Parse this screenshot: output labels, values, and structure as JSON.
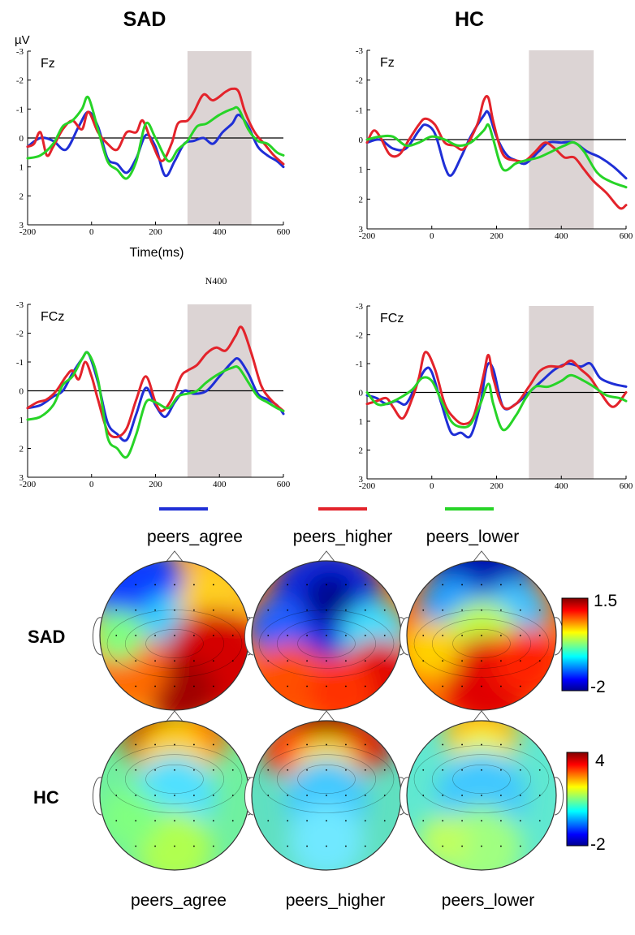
{
  "colors": {
    "peers_agree": "#1f2fd6",
    "peers_higher": "#e3232b",
    "peers_lower": "#27d427",
    "window_shade": "#dcd4d4"
  },
  "groups": {
    "sad": "SAD",
    "hc": "HC"
  },
  "unit_label": "µV",
  "xlabel": "Time(ms)",
  "window_label": "N400",
  "legend": [
    {
      "name": "peers_agree",
      "color": "#1f2fd6"
    },
    {
      "name": "peers_higher",
      "color": "#e3232b"
    },
    {
      "name": "peers_lower",
      "color": "#27d427"
    }
  ],
  "topo": {
    "conditions": [
      "peers_agree",
      "peers_higher",
      "peers_lower"
    ],
    "sad_scale": {
      "max": "1.5",
      "min": "-2"
    },
    "hc_scale": {
      "max": "4",
      "min": "-2"
    }
  },
  "chart_data": [
    {
      "type": "line",
      "panel": "SAD Fz",
      "electrode": "Fz",
      "x_ticks": [
        -200,
        0,
        200,
        400,
        600
      ],
      "y_ticks": [
        -3,
        -2,
        -1,
        0,
        1,
        2,
        3
      ],
      "xlim": [
        -200,
        600
      ],
      "ylim": [
        -3,
        3
      ],
      "y_inverted": true,
      "shaded_window": [
        300,
        500
      ],
      "series": [
        {
          "name": "peers_agree",
          "x": [
            -200,
            -160,
            -120,
            -80,
            -40,
            -10,
            20,
            50,
            80,
            110,
            140,
            170,
            200,
            230,
            260,
            290,
            320,
            350,
            380,
            410,
            440,
            460,
            490,
            520,
            550,
            580,
            600
          ],
          "y": [
            0.3,
            0.0,
            0.1,
            0.4,
            -0.4,
            -0.9,
            -0.4,
            0.7,
            0.9,
            1.2,
            0.7,
            -0.1,
            0.3,
            1.3,
            0.8,
            0.2,
            0.1,
            0.0,
            0.2,
            -0.2,
            -0.5,
            -0.8,
            -0.4,
            0.3,
            0.6,
            0.8,
            1.0
          ]
        },
        {
          "name": "peers_higher",
          "x": [
            -200,
            -180,
            -160,
            -140,
            -120,
            -90,
            -60,
            -30,
            -10,
            20,
            50,
            80,
            110,
            140,
            160,
            190,
            220,
            250,
            270,
            300,
            320,
            350,
            380,
            420,
            440,
            460,
            480,
            510,
            540,
            570,
            600
          ],
          "y": [
            0.3,
            0.2,
            -0.2,
            0.6,
            0.3,
            -0.3,
            -0.6,
            -0.3,
            -0.9,
            -0.2,
            0.2,
            0.4,
            -0.2,
            -0.2,
            -0.6,
            0.2,
            0.8,
            0.2,
            -0.5,
            -0.6,
            -0.9,
            -1.5,
            -1.3,
            -1.6,
            -1.7,
            -1.6,
            -0.9,
            -0.2,
            0.2,
            0.6,
            0.9
          ]
        },
        {
          "name": "peers_lower",
          "x": [
            -200,
            -160,
            -120,
            -90,
            -60,
            -30,
            -10,
            20,
            50,
            80,
            110,
            140,
            170,
            200,
            240,
            270,
            300,
            330,
            360,
            400,
            440,
            460,
            490,
            520,
            550,
            580,
            600
          ],
          "y": [
            0.7,
            0.6,
            0.2,
            -0.4,
            -0.6,
            -1.0,
            -1.4,
            -0.3,
            0.8,
            1.1,
            1.4,
            0.8,
            -0.5,
            0.0,
            0.8,
            0.4,
            0.1,
            -0.4,
            -0.5,
            -0.8,
            -1.0,
            -1.0,
            -0.3,
            0.1,
            0.2,
            0.5,
            0.6
          ]
        }
      ]
    },
    {
      "type": "line",
      "panel": "HC Fz",
      "electrode": "Fz",
      "x_ticks": [
        -200,
        0,
        200,
        400,
        600
      ],
      "y_ticks": [
        -3,
        -2,
        -1,
        0,
        1,
        2,
        3
      ],
      "xlim": [
        -200,
        600
      ],
      "ylim": [
        -3,
        3
      ],
      "y_inverted": true,
      "shaded_window": [
        300,
        500
      ],
      "series": [
        {
          "name": "peers_agree",
          "x": [
            -200,
            -160,
            -120,
            -80,
            -40,
            -20,
            10,
            40,
            60,
            90,
            120,
            160,
            175,
            200,
            230,
            260,
            290,
            330,
            360,
            400,
            440,
            480,
            520,
            560,
            600
          ],
          "y": [
            0.1,
            0.0,
            0.3,
            0.3,
            -0.3,
            -0.5,
            -0.2,
            0.9,
            1.2,
            0.6,
            -0.1,
            -0.8,
            -0.9,
            -0.1,
            0.5,
            0.7,
            0.8,
            0.4,
            0.1,
            0.1,
            0.1,
            0.4,
            0.6,
            0.9,
            1.3
          ]
        },
        {
          "name": "peers_higher",
          "x": [
            -200,
            -180,
            -160,
            -130,
            -100,
            -70,
            -40,
            -20,
            10,
            40,
            70,
            100,
            140,
            160,
            175,
            190,
            220,
            260,
            290,
            320,
            350,
            380,
            410,
            440,
            470,
            500,
            540,
            580,
            600
          ],
          "y": [
            0.1,
            -0.3,
            -0.1,
            0.5,
            0.5,
            0.0,
            -0.5,
            -0.7,
            -0.5,
            0.1,
            0.2,
            0.3,
            -0.5,
            -1.3,
            -1.4,
            -0.6,
            0.5,
            0.7,
            0.7,
            0.4,
            0.1,
            0.3,
            0.6,
            0.6,
            1.0,
            1.4,
            1.8,
            2.3,
            2.2
          ]
        },
        {
          "name": "peers_lower",
          "x": [
            -200,
            -160,
            -120,
            -80,
            -40,
            0,
            40,
            80,
            120,
            160,
            175,
            190,
            220,
            260,
            290,
            330,
            370,
            410,
            440,
            470,
            510,
            550,
            600
          ],
          "y": [
            0.0,
            -0.1,
            -0.1,
            0.2,
            0.1,
            -0.1,
            0.0,
            0.2,
            0.1,
            -0.3,
            -0.5,
            0.0,
            1.0,
            0.8,
            0.7,
            0.6,
            0.4,
            0.2,
            0.1,
            0.4,
            1.1,
            1.4,
            1.6
          ]
        }
      ]
    },
    {
      "type": "line",
      "panel": "SAD FCz",
      "electrode": "FCz",
      "x_ticks": [
        -200,
        0,
        200,
        400,
        600
      ],
      "y_ticks": [
        -3,
        -2,
        -1,
        0,
        1,
        2,
        3
      ],
      "xlim": [
        -200,
        600
      ],
      "ylim": [
        -3,
        3
      ],
      "y_inverted": true,
      "shaded_window": [
        300,
        500
      ],
      "series": [
        {
          "name": "peers_agree",
          "x": [
            -200,
            -160,
            -120,
            -90,
            -60,
            -30,
            -10,
            20,
            50,
            80,
            110,
            140,
            170,
            200,
            230,
            260,
            290,
            320,
            360,
            400,
            440,
            460,
            490,
            520,
            550,
            580,
            600
          ],
          "y": [
            0.6,
            0.5,
            0.2,
            0.0,
            -0.6,
            -1.1,
            -1.3,
            -0.3,
            1.1,
            1.5,
            1.7,
            0.8,
            -0.1,
            0.5,
            0.9,
            0.4,
            0.0,
            0.1,
            0.0,
            -0.5,
            -1.0,
            -1.1,
            -0.6,
            0.1,
            0.3,
            0.5,
            0.8
          ]
        },
        {
          "name": "peers_higher",
          "x": [
            -200,
            -170,
            -140,
            -110,
            -80,
            -60,
            -40,
            -20,
            0,
            20,
            50,
            80,
            110,
            140,
            170,
            200,
            220,
            250,
            280,
            300,
            330,
            360,
            390,
            420,
            450,
            470,
            500,
            530,
            560,
            600
          ],
          "y": [
            0.6,
            0.4,
            0.3,
            0.0,
            -0.5,
            -0.7,
            -0.4,
            -1.0,
            -0.5,
            0.3,
            1.4,
            1.6,
            1.3,
            0.3,
            -0.5,
            0.4,
            0.7,
            0.3,
            -0.5,
            -0.7,
            -0.9,
            -1.3,
            -1.5,
            -1.4,
            -1.9,
            -2.2,
            -1.3,
            -0.2,
            0.3,
            0.7
          ]
        },
        {
          "name": "peers_lower",
          "x": [
            -200,
            -160,
            -120,
            -90,
            -60,
            -30,
            -10,
            20,
            50,
            80,
            110,
            140,
            170,
            200,
            240,
            270,
            300,
            330,
            360,
            400,
            440,
            460,
            490,
            520,
            550,
            580,
            600
          ],
          "y": [
            1.0,
            0.9,
            0.5,
            -0.2,
            -0.5,
            -1.1,
            -1.3,
            -0.4,
            1.6,
            2.0,
            2.3,
            1.5,
            0.4,
            0.4,
            0.6,
            0.2,
            0.1,
            0.0,
            -0.3,
            -0.6,
            -0.8,
            -0.8,
            -0.3,
            0.2,
            0.4,
            0.6,
            0.7
          ]
        }
      ]
    },
    {
      "type": "line",
      "panel": "HC FCz",
      "electrode": "FCz",
      "x_ticks": [
        -200,
        0,
        200,
        400,
        600
      ],
      "y_ticks": [
        -3,
        -2,
        -1,
        0,
        1,
        2,
        3
      ],
      "xlim": [
        -200,
        600
      ],
      "ylim": [
        -3,
        3
      ],
      "y_inverted": true,
      "shaded_window": [
        300,
        500
      ],
      "series": [
        {
          "name": "peers_agree",
          "x": [
            -200,
            -170,
            -140,
            -110,
            -80,
            -50,
            -20,
            0,
            30,
            60,
            90,
            120,
            150,
            170,
            190,
            220,
            260,
            300,
            340,
            380,
            420,
            460,
            490,
            520,
            560,
            600
          ],
          "y": [
            0.1,
            0.2,
            0.4,
            0.3,
            0.4,
            -0.2,
            -0.8,
            -0.7,
            0.4,
            1.4,
            1.4,
            1.5,
            0.4,
            -0.9,
            -0.8,
            0.5,
            0.4,
            0.0,
            -0.4,
            -0.8,
            -1.0,
            -0.9,
            -1.0,
            -0.5,
            -0.3,
            -0.2
          ]
        },
        {
          "name": "peers_higher",
          "x": [
            -200,
            -170,
            -140,
            -120,
            -90,
            -60,
            -40,
            -20,
            10,
            40,
            70,
            100,
            130,
            160,
            175,
            190,
            220,
            260,
            300,
            330,
            360,
            400,
            430,
            460,
            490,
            520,
            560,
            600
          ],
          "y": [
            0.4,
            0.3,
            0.2,
            0.5,
            0.9,
            0.2,
            -0.5,
            -1.4,
            -0.8,
            0.4,
            0.9,
            1.1,
            0.8,
            -0.6,
            -1.3,
            -0.5,
            0.5,
            0.4,
            -0.2,
            -0.7,
            -0.9,
            -0.9,
            -1.1,
            -0.8,
            -0.5,
            0.0,
            0.5,
            0.0
          ]
        },
        {
          "name": "peers_lower",
          "x": [
            -200,
            -170,
            -140,
            -100,
            -60,
            -30,
            0,
            30,
            60,
            90,
            120,
            150,
            175,
            190,
            220,
            260,
            290,
            320,
            360,
            400,
            430,
            470,
            500,
            540,
            580,
            600
          ],
          "y": [
            0.0,
            0.4,
            0.4,
            0.2,
            -0.1,
            -0.5,
            -0.4,
            0.3,
            1.0,
            1.2,
            1.1,
            0.4,
            -0.3,
            0.4,
            1.3,
            0.8,
            0.2,
            -0.2,
            -0.2,
            -0.4,
            -0.6,
            -0.4,
            -0.2,
            0.1,
            0.2,
            0.3
          ]
        }
      ]
    }
  ]
}
